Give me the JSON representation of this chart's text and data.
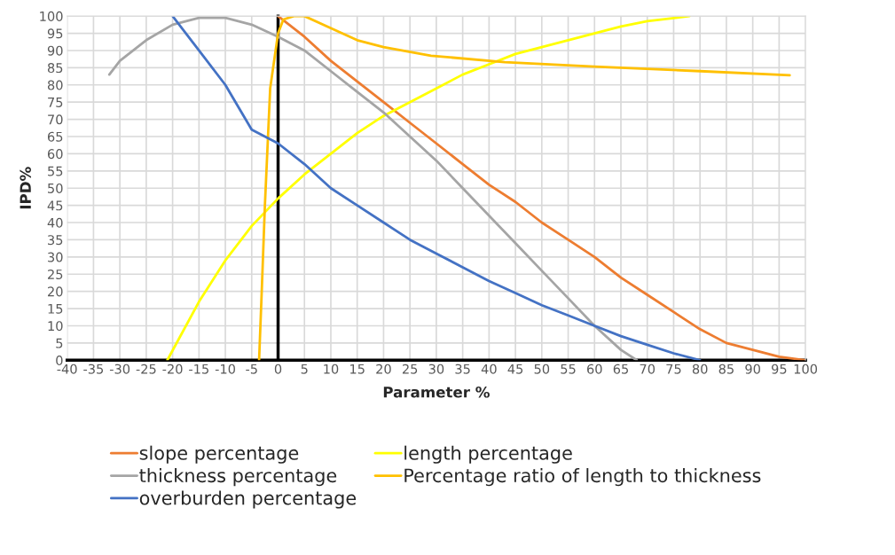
{
  "chart_data": {
    "type": "line",
    "xlabel": "Parameter %",
    "ylabel": "IPD%",
    "xlim": [
      -40,
      100
    ],
    "ylim": [
      0,
      100
    ],
    "xticks": [
      -40,
      -35,
      -30,
      -25,
      -20,
      -15,
      -10,
      -5,
      0,
      5,
      10,
      15,
      20,
      25,
      30,
      35,
      40,
      45,
      50,
      55,
      60,
      65,
      70,
      75,
      80,
      85,
      90,
      95,
      100
    ],
    "yticks": [
      0,
      5,
      10,
      15,
      20,
      25,
      30,
      35,
      40,
      45,
      50,
      55,
      60,
      65,
      70,
      75,
      80,
      85,
      90,
      95,
      100
    ],
    "grid": true,
    "legend": "bottom",
    "marker": "none",
    "line_style": "solid",
    "series": [
      {
        "name": "slope percentage",
        "color": "#ed7d31",
        "x": [
          0,
          5,
          10,
          15,
          20,
          25,
          30,
          35,
          40,
          45,
          50,
          55,
          60,
          65,
          70,
          75,
          80,
          85,
          90,
          95,
          100
        ],
        "values": [
          100,
          94,
          87,
          81,
          75,
          69,
          63,
          57,
          51,
          46,
          40,
          35,
          30,
          24,
          19,
          14,
          9,
          5,
          3,
          1,
          0
        ]
      },
      {
        "name": "length percentage",
        "color": "#ffff00",
        "x": [
          -21,
          -15,
          -10,
          -5,
          0,
          5,
          10,
          15,
          20,
          25,
          30,
          35,
          40,
          45,
          50,
          55,
          60,
          65,
          70,
          78
        ],
        "values": [
          0,
          17,
          29,
          39,
          47,
          54,
          60,
          66,
          71,
          75,
          79,
          83,
          86,
          89,
          91,
          93,
          95,
          97,
          98.5,
          100
        ]
      },
      {
        "name": "thickness percentage",
        "color": "#a5a5a5",
        "x": [
          -32,
          -30,
          -25,
          -20,
          -15,
          -10,
          -5,
          0,
          5,
          10,
          15,
          20,
          25,
          30,
          35,
          40,
          45,
          50,
          55,
          60,
          65,
          68
        ],
        "values": [
          83,
          87,
          93,
          97.5,
          99.5,
          99.5,
          97.5,
          94,
          90,
          84,
          78,
          72,
          65,
          58,
          50,
          42,
          34,
          26,
          18,
          10,
          3,
          0
        ]
      },
      {
        "name": "Percentage ratio of length to thickness",
        "color": "#ffc000",
        "x": [
          -3.6,
          -3.1,
          -2.5,
          -1.5,
          0,
          1,
          3,
          5,
          10,
          15,
          20,
          29,
          43,
          60,
          80,
          97
        ],
        "values": [
          0,
          20,
          45,
          79,
          95,
          99,
          100,
          100,
          96.5,
          93,
          91,
          88.5,
          86.6,
          85.3,
          84,
          82.8
        ]
      },
      {
        "name": "overburden percentage",
        "color": "#4472c4",
        "x": [
          -20,
          -15,
          -10,
          -5,
          0,
          5,
          10,
          15,
          20,
          25,
          30,
          35,
          40,
          45,
          50,
          55,
          60,
          65,
          70,
          75,
          80
        ],
        "values": [
          100,
          90,
          80,
          67,
          63,
          57,
          50,
          45,
          40,
          35,
          31,
          27,
          23,
          19.5,
          16,
          13,
          10,
          7,
          4.5,
          2,
          0
        ]
      }
    ]
  }
}
